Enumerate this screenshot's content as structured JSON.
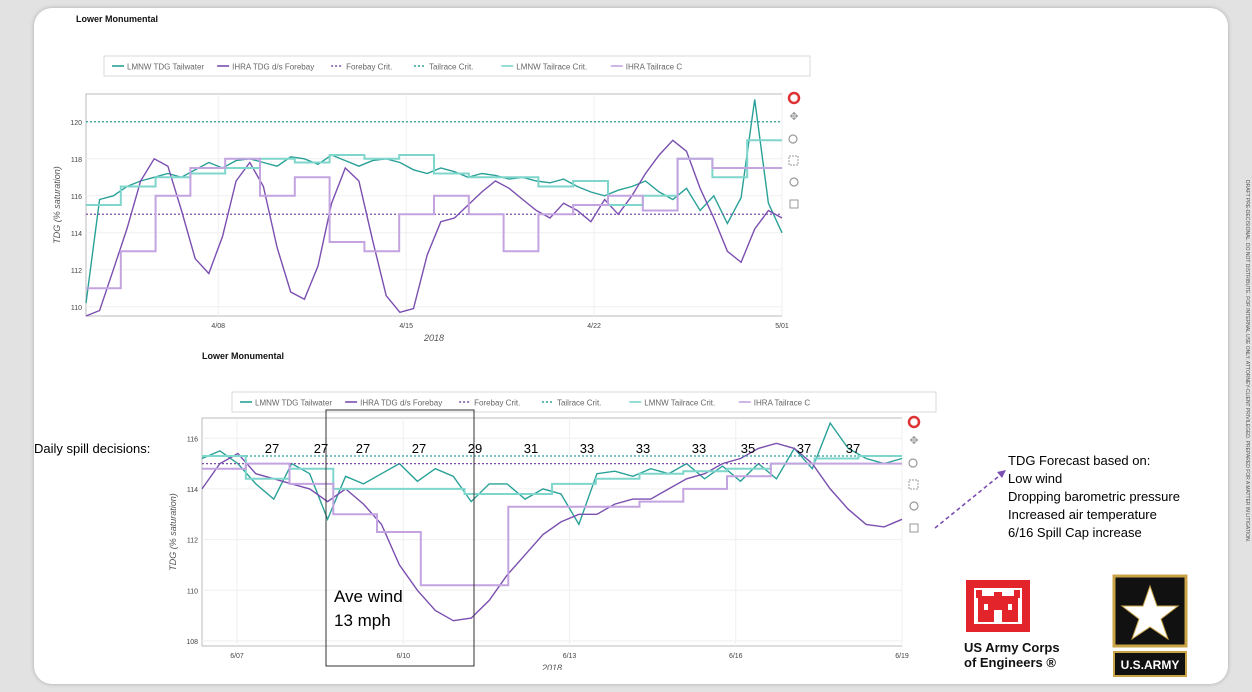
{
  "slide": {
    "side_note": "DRAFT PRE-DECISIONAL. DO NOT DISTRIBUTE. FOR INTERNAL USE ONLY. ATTORNEY-CLIENT PRIVILEGED. PREPARED FOR A MATTER IN LITIGATION."
  },
  "annotations": {
    "daily_spill_label": "Daily spill decisions:",
    "spill_values": [
      "27",
      "27",
      "27",
      "27",
      "29",
      "31",
      "33",
      "33",
      "33",
      "35",
      "37",
      "37"
    ],
    "wind_box_line1": "Ave wind",
    "wind_box_line2": "13 mph",
    "forecast_lines": [
      "TDG Forecast based on:",
      "Low wind",
      "Dropping barometric pressure",
      "Increased air temperature",
      "6/16 Spill Cap increase"
    ]
  },
  "logos": {
    "usace_line1": "US Army Corps",
    "usace_line2": "of Engineers ®",
    "army_label": "U.S.ARMY"
  },
  "colors": {
    "teal": "#2aa198",
    "purple": "#7b4fb0",
    "light_teal": "#7fd6cc",
    "light_purple": "#c3a3e0",
    "usace_red": "#e3242b"
  },
  "chart_data": [
    {
      "type": "line",
      "title": "Lower Monumental",
      "xlabel": "2018",
      "ylabel": "TDG (% saturation)",
      "x_ticks": [
        "4/08",
        "4/15",
        "4/22",
        "5/01"
      ],
      "y_ticks": [
        110,
        112,
        114,
        116,
        118,
        120
      ],
      "ylim": [
        109.5,
        121.5
      ],
      "legend_position": "top",
      "grid": true,
      "series": [
        {
          "name": "LMNW TDG Tailwater",
          "style": "solid",
          "color": "#2aa198",
          "values": [
            110.2,
            115.8,
            116.0,
            116.5,
            116.8,
            117.0,
            117.2,
            117.0,
            117.4,
            117.8,
            117.5,
            117.9,
            118.0,
            117.8,
            117.6,
            118.1,
            118.0,
            117.7,
            118.2,
            117.9,
            117.6,
            117.9,
            118.0,
            117.8,
            117.4,
            117.2,
            117.5,
            117.3,
            117.0,
            117.2,
            117.1,
            116.9,
            117.0,
            116.8,
            116.7,
            116.9,
            116.5,
            116.2,
            116.0,
            116.3,
            116.5,
            116.8,
            116.2,
            115.8,
            116.4,
            115.2,
            116.0,
            114.5,
            115.9,
            121.2,
            115.6,
            114.0
          ]
        },
        {
          "name": "IHRA TDG d/s Forebay",
          "style": "solid",
          "color": "#7b4fb0",
          "values": [
            109.5,
            109.8,
            112.0,
            114.2,
            116.8,
            118.0,
            117.6,
            115.2,
            112.6,
            111.8,
            113.8,
            116.8,
            117.8,
            116.5,
            113.2,
            110.8,
            110.4,
            112.2,
            115.6,
            117.5,
            116.8,
            113.6,
            110.6,
            109.7,
            109.9,
            112.8,
            114.6,
            114.8,
            115.5,
            116.2,
            116.8,
            116.4,
            115.8,
            115.2,
            114.8,
            115.6,
            115.2,
            114.6,
            115.8,
            115.0,
            116.0,
            117.2,
            118.2,
            119.0,
            118.4,
            116.4,
            114.8,
            113.0,
            112.4,
            114.2,
            115.2,
            114.8
          ]
        },
        {
          "name": "Forebay Crit.",
          "style": "dotted",
          "color": "#7b4fb0",
          "values": [
            115.0
          ]
        },
        {
          "name": "Tailrace Crit.",
          "style": "dotted",
          "color": "#2aa198",
          "values": [
            120.0
          ]
        },
        {
          "name": "LMNW Tailrace Crit.",
          "style": "step",
          "color": "#7fd6cc",
          "values": [
            115.5,
            116.5,
            117.0,
            117.2,
            117.5,
            118.0,
            117.8,
            118.2,
            118.0,
            118.2,
            117.2,
            117.0,
            117.0,
            116.5,
            116.8,
            115.5,
            116.0,
            118.0,
            117.0,
            119.0
          ]
        },
        {
          "name": "IHRA Tailrace C",
          "style": "step",
          "color": "#c3a3e0",
          "values": [
            111.0,
            113.0,
            116.0,
            117.5,
            118.0,
            116.0,
            117.0,
            113.5,
            113.0,
            115.0,
            116.0,
            115.0,
            113.0,
            115.0,
            115.5,
            116.0,
            115.2,
            118.0,
            117.5,
            117.5
          ]
        }
      ]
    },
    {
      "type": "line",
      "title": "Lower Monumental",
      "xlabel": "2018",
      "ylabel": "TDG (% saturation)",
      "x_ticks": [
        "6/07",
        "6/10",
        "6/13",
        "6/16",
        "6/19"
      ],
      "y_ticks": [
        108,
        110,
        112,
        114,
        116
      ],
      "ylim": [
        107.8,
        116.8
      ],
      "legend_position": "top",
      "grid": true,
      "series": [
        {
          "name": "LMNW TDG Tailwater",
          "style": "solid",
          "color": "#2aa198",
          "values": [
            115.2,
            115.5,
            115.0,
            114.2,
            113.6,
            115.0,
            114.6,
            112.8,
            114.5,
            114.2,
            114.6,
            115.0,
            114.3,
            114.8,
            114.5,
            113.5,
            114.2,
            114.2,
            113.6,
            114.0,
            113.8,
            112.6,
            114.6,
            114.7,
            114.5,
            114.8,
            114.6,
            115.0,
            114.4,
            114.9,
            114.3,
            115.0,
            114.4,
            115.6,
            114.8,
            116.6,
            115.6,
            115.2,
            115.0,
            115.2
          ]
        },
        {
          "name": "IHRA TDG d/s Forebay",
          "style": "solid",
          "color": "#7b4fb0",
          "values": [
            114.0,
            115.0,
            115.4,
            114.6,
            114.4,
            114.2,
            114.0,
            113.5,
            114.0,
            113.4,
            112.6,
            111.0,
            110.0,
            109.2,
            108.8,
            108.9,
            109.6,
            110.6,
            111.4,
            112.2,
            112.7,
            113.0,
            113.0,
            113.4,
            113.6,
            113.6,
            114.0,
            114.4,
            114.6,
            115.0,
            115.2,
            115.6,
            115.8,
            115.6,
            115.0,
            114.0,
            113.2,
            112.6,
            112.5,
            112.8
          ]
        },
        {
          "name": "Forebay Crit.",
          "style": "dotted",
          "color": "#7b4fb0",
          "values": [
            115.0
          ]
        },
        {
          "name": "Tailrace Crit.",
          "style": "dotted",
          "color": "#2aa198",
          "values": [
            115.3
          ]
        },
        {
          "name": "LMNW Tailrace Crit.",
          "style": "step",
          "color": "#7fd6cc",
          "values": [
            115.3,
            114.4,
            114.8,
            114.0,
            114.0,
            114.0,
            113.8,
            113.8,
            114.2,
            114.4,
            114.6,
            114.7,
            114.8,
            115.0,
            115.2,
            115.3
          ]
        },
        {
          "name": "IHRA Tailrace C",
          "style": "step",
          "color": "#c3a3e0",
          "values": [
            114.8,
            115.0,
            114.2,
            113.0,
            112.3,
            110.2,
            110.2,
            113.3,
            113.3,
            113.3,
            113.5,
            114.0,
            114.5,
            115.0,
            115.0,
            115.0
          ]
        }
      ]
    }
  ]
}
